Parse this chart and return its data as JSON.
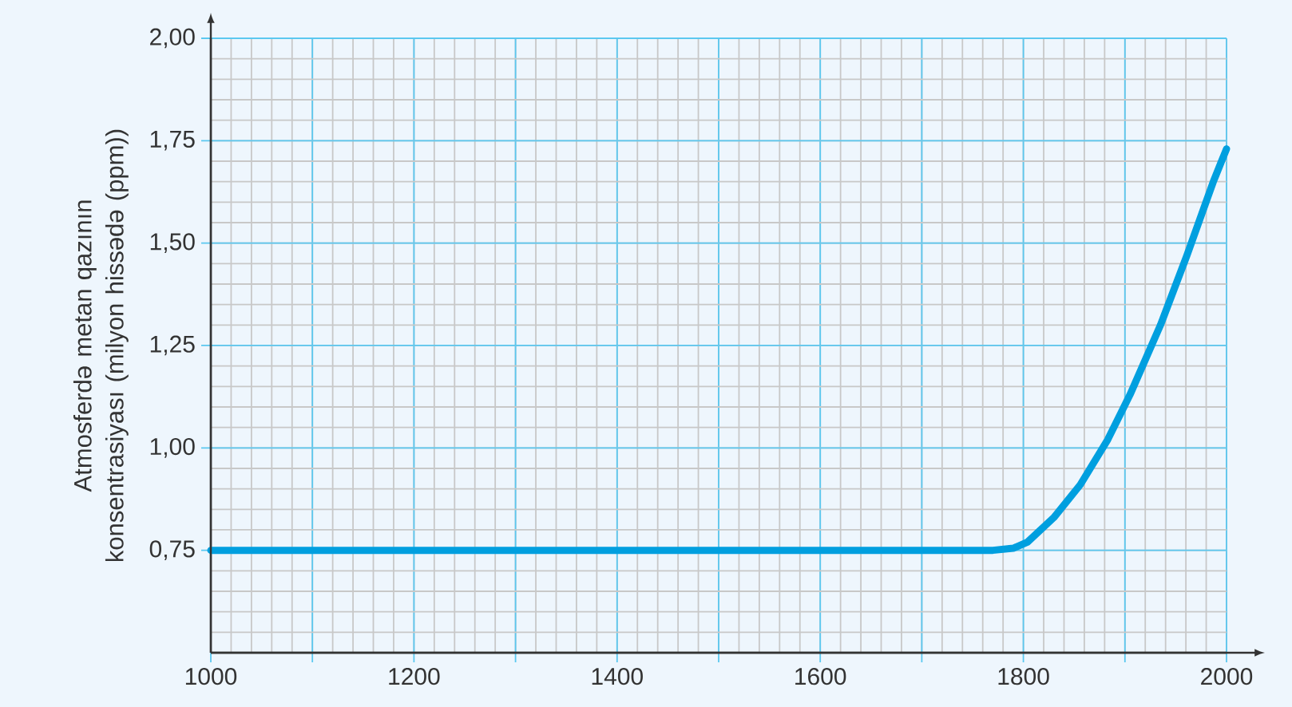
{
  "chart_data": {
    "type": "line",
    "ylabel": "Atmosferdə metan qazının konsentrasiyası (milyon hissədə (ppm))",
    "x": [
      1000,
      1500,
      1770,
      1790,
      1804,
      1830,
      1856,
      1883,
      1905,
      1935,
      1961,
      1987,
      2000
    ],
    "series": [
      {
        "color": "#009fdf",
        "values": [
          0.75,
          0.75,
          0.75,
          0.755,
          0.77,
          0.83,
          0.91,
          1.02,
          1.13,
          1.3,
          1.47,
          1.65,
          1.73
        ]
      }
    ],
    "xlim": [
      1000,
      2000
    ],
    "ylim": [
      0.5,
      2.0
    ],
    "xticks": [
      1000,
      {
        "value": 1100,
        "label": null
      },
      1200,
      {
        "value": 1300,
        "label": null
      },
      1400,
      {
        "value": 1500,
        "label": null
      },
      1600,
      {
        "value": 1700,
        "label": null
      },
      1800,
      {
        "value": 1900,
        "label": null
      },
      2000
    ],
    "yticks": [
      {
        "value": 0.75,
        "label": "0,75"
      },
      {
        "value": 1.0,
        "label": "1,00"
      },
      {
        "value": 1.25,
        "label": "1,25"
      },
      {
        "value": 1.5,
        "label": "1,50"
      },
      {
        "value": 1.75,
        "label": "1,75"
      },
      {
        "value": 2.0,
        "label": "2,00"
      }
    ],
    "grid": true,
    "marker": "none",
    "line_style": "solid"
  }
}
